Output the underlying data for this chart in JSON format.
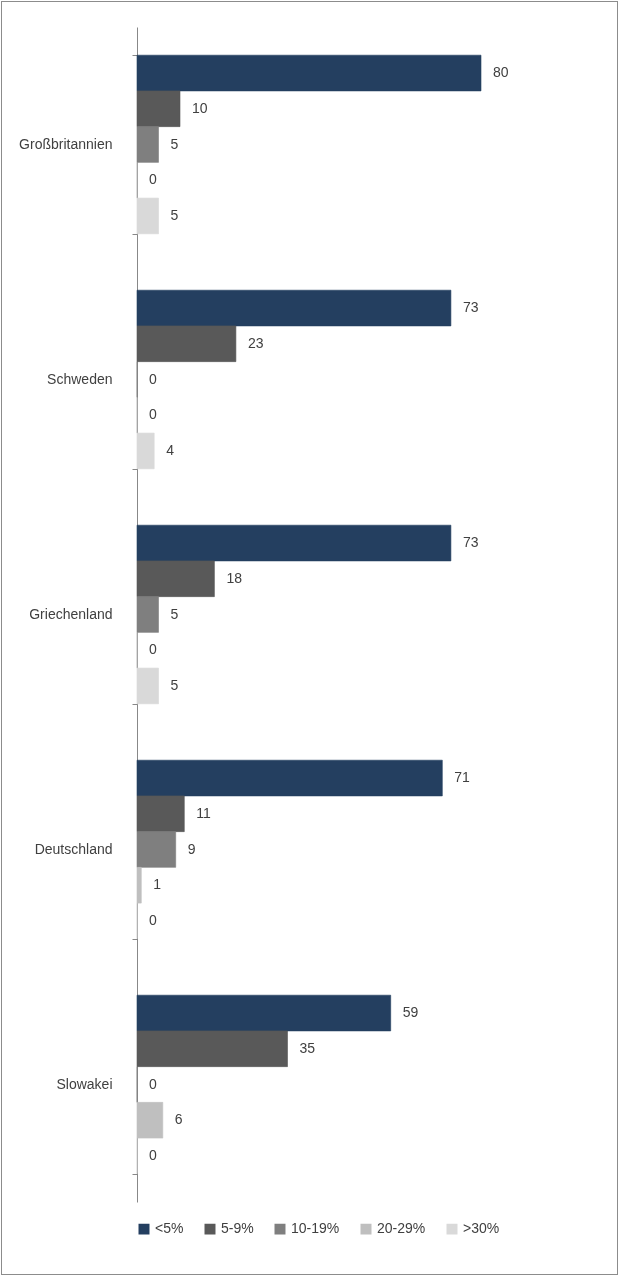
{
  "chart_data": {
    "type": "bar",
    "orientation": "horizontal",
    "categories": [
      "Großbritannien",
      "Schweden",
      "Griechenland",
      "Deutschland",
      "Slowakei"
    ],
    "series": [
      {
        "name": "<5%",
        "color": "#243f60",
        "values": [
          80,
          73,
          73,
          71,
          59
        ]
      },
      {
        "name": "5-9%",
        "color": "#595959",
        "values": [
          10,
          23,
          18,
          11,
          35
        ]
      },
      {
        "name": "10-19%",
        "color": "#7f7f7f",
        "values": [
          5,
          0,
          5,
          9,
          0
        ]
      },
      {
        "name": "20-29%",
        "color": "#bfbfbf",
        "values": [
          0,
          0,
          0,
          1,
          6
        ]
      },
      {
        "name": ">30%",
        "color": "#d9d9d9",
        "values": [
          5,
          4,
          5,
          0,
          0
        ]
      }
    ],
    "data_labels": true,
    "legend": "bottom"
  }
}
